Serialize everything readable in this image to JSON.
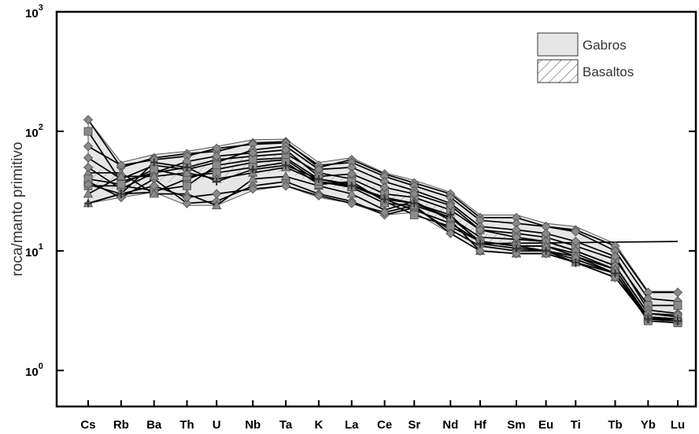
{
  "chart_data": {
    "type": "line",
    "title": "",
    "xlabel": "",
    "ylabel": "roca/manto primitivo",
    "yscale": "log",
    "ylim": [
      0.5,
      1000
    ],
    "y_tick_labels": [
      {
        "base": "10",
        "exp": "3",
        "value": 1000
      },
      {
        "base": "10",
        "exp": "2",
        "value": 100
      },
      {
        "base": "10",
        "exp": "1",
        "value": 10
      },
      {
        "base": "10",
        "exp": "0",
        "value": 1
      }
    ],
    "categories": [
      "Cs",
      "Rb",
      "Ba",
      "Th",
      "U",
      "Nb",
      "Ta",
      "K",
      "La",
      "Ce",
      "Sr",
      "Nd",
      "Hf",
      "Sm",
      "Eu",
      "Ti",
      "Tb",
      "Yb",
      "Lu"
    ],
    "x_positions": [
      1,
      2,
      3,
      4,
      4.9,
      6,
      7,
      8,
      9,
      10,
      10.9,
      12,
      12.9,
      14,
      14.9,
      15.8,
      17,
      18,
      18.9
    ],
    "legend": [
      {
        "label": "Gabros",
        "fill": "#e6e6e6",
        "pattern": "solid"
      },
      {
        "label": "Basaltos",
        "fill": "#ffffff",
        "pattern": "hatch"
      }
    ],
    "colors": {
      "band": "#e6e6e6",
      "line": "#000000",
      "marker": "#8a8a8a",
      "marker_edge": "#4a4a4a"
    },
    "envelope": {
      "name": "Gabros",
      "upper": [
        125,
        55,
        64,
        68,
        75,
        85,
        86,
        55,
        60,
        45,
        39,
        31,
        20,
        20,
        17,
        16,
        11.5,
        4.6,
        4.6
      ],
      "lower": [
        25,
        28,
        31,
        24,
        24,
        32,
        35,
        28,
        25,
        20,
        21,
        14,
        10,
        9.5,
        9.5,
        8,
        6,
        2.7,
        2.5
      ]
    },
    "basalt_band": {
      "name": "Basaltos",
      "upper": [
        55,
        40,
        46,
        52,
        60,
        62,
        64,
        44,
        42,
        32,
        28,
        22,
        14,
        13,
        12,
        10,
        8,
        3.3,
        3.1
      ],
      "lower": [
        35,
        32,
        37,
        38,
        42,
        44,
        46,
        35,
        33,
        27,
        24,
        16,
        11,
        10.5,
        10,
        8.5,
        6.5,
        2.8,
        2.7
      ]
    },
    "series": [
      {
        "marker": "diamond",
        "values": [
          125,
          50,
          60,
          65,
          68,
          80,
          82,
          50,
          58,
          44,
          37,
          30,
          19,
          19,
          16,
          15,
          11,
          4.5,
          4.5
        ]
      },
      {
        "marker": "diamond",
        "values": [
          75,
          52,
          58,
          62,
          72,
          78,
          80,
          52,
          55,
          42,
          35,
          28,
          18,
          17,
          16,
          14.5,
          10,
          4.0,
          3.8
        ]
      },
      {
        "marker": "square",
        "values": [
          100,
          38,
          45,
          50,
          58,
          62,
          65,
          45,
          40,
          30,
          28,
          22,
          15,
          14,
          13,
          11,
          8.5,
          3.5,
          3.5
        ]
      },
      {
        "marker": "diamond",
        "values": [
          60,
          40,
          52,
          48,
          55,
          70,
          75,
          48,
          50,
          38,
          32,
          25,
          16,
          15,
          14,
          12,
          9,
          3.2,
          3.0
        ]
      },
      {
        "marker": "triangle",
        "values": [
          25,
          30,
          31,
          40,
          48,
          55,
          58,
          38,
          35,
          28,
          25,
          19,
          13,
          12.5,
          12,
          10,
          7.5,
          3.0,
          2.8
        ]
      },
      {
        "marker": "square",
        "values": [
          35,
          35,
          32,
          35,
          52,
          58,
          60,
          40,
          36,
          27,
          22,
          17,
          12,
          11,
          11,
          9.5,
          7,
          2.8,
          2.6
        ]
      },
      {
        "marker": "diamond",
        "values": [
          38,
          28,
          40,
          25,
          26,
          35,
          38,
          30,
          26,
          20,
          23,
          15,
          11,
          10,
          10,
          8.5,
          6.5,
          2.8,
          2.7
        ]
      },
      {
        "marker": "triangle",
        "values": [
          45,
          45,
          30,
          30,
          24,
          40,
          42,
          35,
          30,
          22,
          26,
          18,
          10,
          9.5,
          9.5,
          8,
          6,
          2.7,
          2.6
        ]
      },
      {
        "marker": "diamond",
        "values": [
          50,
          33,
          45,
          56,
          62,
          66,
          70,
          42,
          44,
          34,
          30,
          24,
          15,
          13,
          12,
          10,
          7.5,
          3.0,
          2.9
        ]
      },
      {
        "marker": "square",
        "values": [
          40,
          36,
          48,
          42,
          45,
          50,
          55,
          36,
          38,
          26,
          20,
          16,
          12,
          11,
          10,
          9,
          6.5,
          2.6,
          2.5
        ]
      },
      {
        "marker": "diamond",
        "values": [
          36,
          30,
          35,
          28,
          30,
          33,
          35,
          29,
          25,
          21,
          24,
          14,
          10,
          9.5,
          9.5,
          8,
          6,
          2.7,
          2.6
        ]
      },
      {
        "marker": "triangle",
        "values": [
          30,
          42,
          42,
          45,
          40,
          45,
          50,
          38,
          34,
          25,
          24,
          19,
          12,
          11,
          11,
          9,
          7,
          2.8,
          2.7
        ]
      },
      {
        "marker": "plus",
        "values": [
          25,
          30,
          55,
          50,
          38,
          48,
          52,
          40,
          35,
          27,
          25,
          20,
          11.5,
          10.5,
          10,
          8,
          6.5,
          2.7,
          2.6
        ],
        "extra_to": 12
      }
    ]
  }
}
